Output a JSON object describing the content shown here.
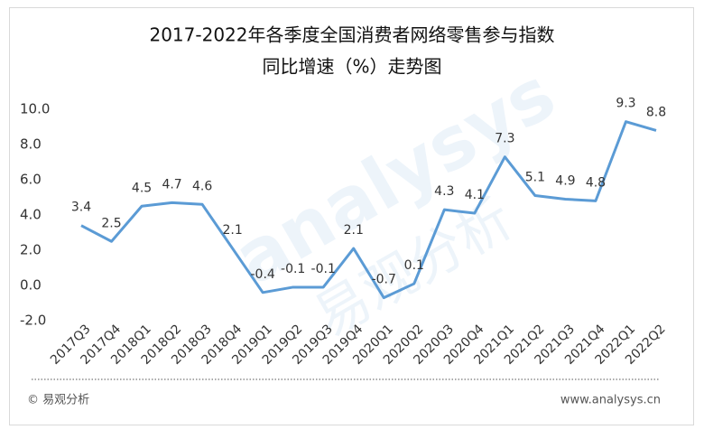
{
  "chart_data": {
    "type": "line",
    "title": [
      "2017-2022年各季度全国消费者网络零售参与指数",
      "同比增速（%）走势图"
    ],
    "categories": [
      "2017Q3",
      "2017Q4",
      "2018Q1",
      "2018Q2",
      "2018Q3",
      "2018Q4",
      "2019Q1",
      "2019Q2",
      "2019Q3",
      "2019Q4",
      "2020Q1",
      "2020Q2",
      "2020Q3",
      "2020Q4",
      "2021Q1",
      "2021Q2",
      "2021Q3",
      "2021Q4",
      "2022Q1",
      "2022Q2"
    ],
    "series": [
      {
        "color": "#5b9bd5",
        "values": [
          3.4,
          2.5,
          4.5,
          4.7,
          4.6,
          2.1,
          -0.4,
          -0.1,
          -0.1,
          2.1,
          -0.7,
          0.1,
          4.3,
          4.1,
          7.3,
          5.1,
          4.9,
          4.8,
          9.3,
          8.8
        ]
      }
    ],
    "ylim": [
      -2,
      10
    ],
    "yticks": [
      {
        "value": -2,
        "label": "-2.0"
      },
      {
        "value": 0,
        "label": "0.0"
      },
      {
        "value": 2,
        "label": "2.0"
      },
      {
        "value": 4,
        "label": "4.0"
      },
      {
        "value": 6,
        "label": "6.0"
      },
      {
        "value": 8,
        "label": "8.0"
      },
      {
        "value": 10,
        "label": "10.0"
      }
    ],
    "grid": false,
    "watermark": [
      "analysys",
      "易观分析"
    ],
    "footer_left": "© 易观分析",
    "footer_right": "www.analysys.cn"
  }
}
